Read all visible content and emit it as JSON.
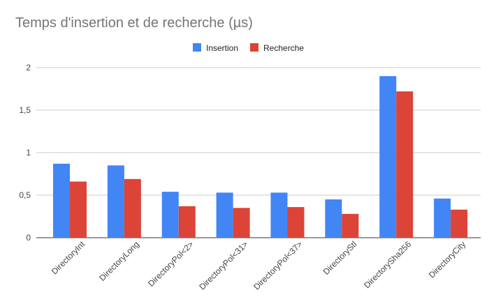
{
  "chart_data": {
    "type": "bar",
    "title": "Temps d'insertion et de recherche (µs)",
    "xlabel": "",
    "ylabel": "",
    "categories": [
      "DirectoryInt",
      "DirectoryLong",
      "DirectoryPol<2>",
      "DirectoryPol<31>",
      "DirectoryPol<37>",
      "DirectoryStl",
      "DirectorySha256",
      "DirectoryCity"
    ],
    "series": [
      {
        "name": "Insertion",
        "color": "#4285f4",
        "values": [
          0.87,
          0.85,
          0.54,
          0.53,
          0.53,
          0.45,
          1.9,
          0.46
        ]
      },
      {
        "name": "Recherche",
        "color": "#db4437",
        "values": [
          0.66,
          0.69,
          0.37,
          0.35,
          0.36,
          0.28,
          1.72,
          0.33
        ]
      }
    ],
    "ylim": [
      0,
      2
    ],
    "yticks": [
      "0",
      "0,5",
      "1",
      "1,5",
      "2"
    ],
    "ytick_values": [
      0,
      0.5,
      1,
      1.5,
      2
    ],
    "grid": true,
    "legend_position": "top-center"
  }
}
